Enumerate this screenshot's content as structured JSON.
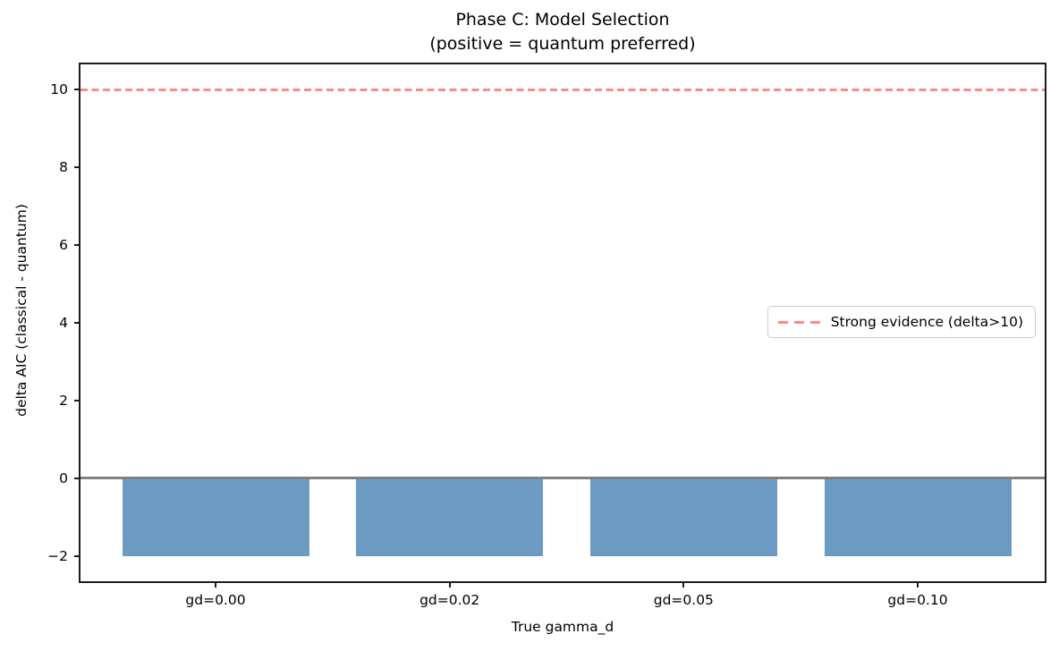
{
  "figure": {
    "title_line1": "Phase C: Model Selection",
    "title_line2": "(positive = quantum preferred)"
  },
  "chart_data": {
    "type": "bar",
    "title": "Phase C: Model Selection (positive = quantum preferred)",
    "categories": [
      "gd=0.00",
      "gd=0.02",
      "gd=0.05",
      "gd=0.10"
    ],
    "values": [
      -2.0,
      -2.0,
      -2.0,
      -2.0
    ],
    "xlabel": "True gamma_d",
    "ylabel": "delta AIC (classical - quantum)",
    "ylim": [
      -2.65,
      10.65
    ],
    "yticks": [
      -2,
      0,
      2,
      4,
      6,
      8,
      10
    ],
    "grid": false,
    "bar_color": "#6b9bc3",
    "zero_line": {
      "y": 0,
      "color": "#808080",
      "style": "solid"
    },
    "threshold_line": {
      "y": 10,
      "color": "#fb8a8a",
      "style": "dashed",
      "label": "Strong evidence (delta>10)"
    },
    "legend": {
      "position": "center right",
      "entries": [
        {
          "label": "Strong evidence (delta>10)",
          "color": "#fb8a8a",
          "style": "dashed"
        }
      ]
    }
  }
}
